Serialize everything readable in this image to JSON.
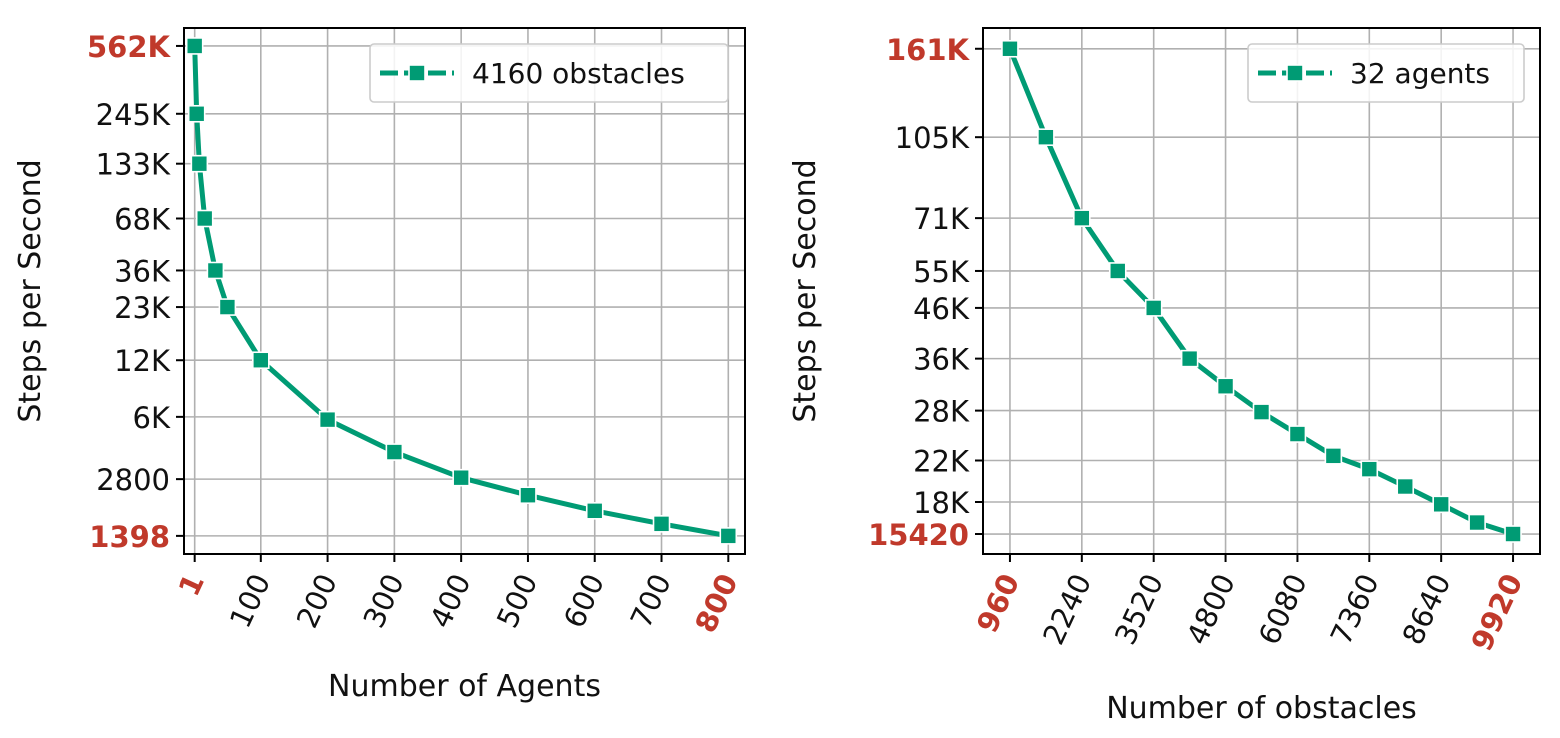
{
  "chart_data": [
    {
      "type": "line",
      "ylabel": "Steps per Second",
      "xlabel": "Number of Agents",
      "yscale": "log",
      "xlim": [
        -15,
        825
      ],
      "ylim": [
        1120,
        700000
      ],
      "x": [
        1,
        4,
        8,
        16,
        32,
        50,
        100,
        200,
        300,
        400,
        500,
        600,
        700,
        800
      ],
      "series": [
        {
          "name": "4160 obstacles",
          "color": "#009b74",
          "values": [
            562000,
            245000,
            133000,
            68000,
            36000,
            23000,
            12000,
            5800,
            3900,
            2850,
            2300,
            1900,
            1620,
            1398
          ]
        }
      ],
      "xticks": [
        "1",
        "100",
        "200",
        "300",
        "400",
        "500",
        "600",
        "700",
        "800"
      ],
      "xtick_values": [
        1,
        100,
        200,
        300,
        400,
        500,
        600,
        700,
        800
      ],
      "yticks": [
        "562K",
        "245K",
        "133K",
        "68K",
        "36K",
        "23K",
        "12K",
        "6K",
        "2800",
        "1398"
      ],
      "ytick_values": [
        562000,
        245000,
        133000,
        68000,
        36000,
        23000,
        12000,
        6000,
        2800,
        1398
      ],
      "highlight_color": "#c0392b",
      "legend_position": "top-right"
    },
    {
      "type": "line",
      "ylabel": "Steps per Second",
      "xlabel": "Number of obstacles",
      "yscale": "log",
      "xlim": [
        480,
        10400
      ],
      "ylim": [
        14000,
        178000
      ],
      "x": [
        960,
        1600,
        2240,
        2880,
        3520,
        4160,
        4800,
        5440,
        6080,
        6720,
        7360,
        8000,
        8640,
        9280,
        9920
      ],
      "series": [
        {
          "name": "32 agents",
          "color": "#009b74",
          "values": [
            161000,
            105000,
            71000,
            55000,
            46000,
            36000,
            31500,
            27800,
            25000,
            22500,
            21100,
            19400,
            17800,
            16300,
            15420
          ]
        }
      ],
      "xticks": [
        "960",
        "2240",
        "3520",
        "4800",
        "6080",
        "7360",
        "8640",
        "9920"
      ],
      "xtick_values": [
        960,
        2240,
        3520,
        4800,
        6080,
        7360,
        8640,
        9920
      ],
      "yticks": [
        "161K",
        "105K",
        "71K",
        "55K",
        "46K",
        "36K",
        "28K",
        "22K",
        "18K",
        "15420"
      ],
      "ytick_values": [
        161000,
        105000,
        71000,
        55000,
        46000,
        36000,
        28000,
        22000,
        18000,
        15420
      ],
      "highlight_color": "#c0392b",
      "legend_position": "top-right"
    }
  ]
}
